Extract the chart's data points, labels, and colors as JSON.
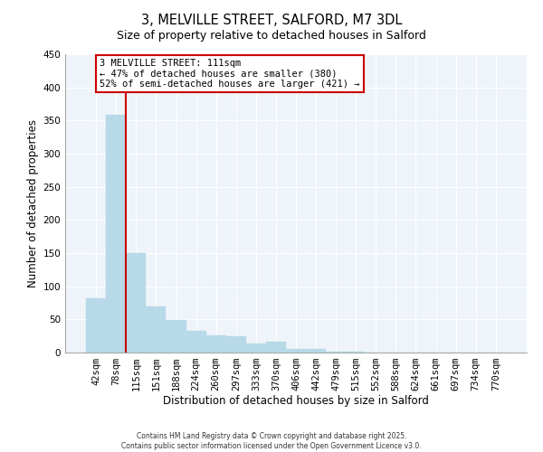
{
  "title": "3, MELVILLE STREET, SALFORD, M7 3DL",
  "subtitle": "Size of property relative to detached houses in Salford",
  "xlabel": "Distribution of detached houses by size in Salford",
  "ylabel": "Number of detached properties",
  "categories": [
    "42sqm",
    "78sqm",
    "115sqm",
    "151sqm",
    "188sqm",
    "224sqm",
    "260sqm",
    "297sqm",
    "333sqm",
    "370sqm",
    "406sqm",
    "442sqm",
    "479sqm",
    "515sqm",
    "552sqm",
    "588sqm",
    "624sqm",
    "661sqm",
    "697sqm",
    "734sqm",
    "770sqm"
  ],
  "values": [
    82,
    358,
    150,
    70,
    49,
    33,
    26,
    25,
    14,
    17,
    5,
    6,
    2,
    1,
    0,
    0,
    0,
    0,
    0,
    0,
    0
  ],
  "bar_color": "#b8d9e8",
  "bar_edge_color": "#b8d9e8",
  "highlight_line_color": "#cc0000",
  "ylim": [
    0,
    450
  ],
  "yticks": [
    0,
    50,
    100,
    150,
    200,
    250,
    300,
    350,
    400,
    450
  ],
  "annotation_line1": "3 MELVILLE STREET: 111sqm",
  "annotation_line2": "← 47% of detached houses are smaller (380)",
  "annotation_line3": "52% of semi-detached houses are larger (421) →",
  "footer_line1": "Contains HM Land Registry data © Crown copyright and database right 2025.",
  "footer_line2": "Contains public sector information licensed under the Open Government Licence v3.0.",
  "background_color": "#eef4fa",
  "grid_color": "#ffffff",
  "fig_bg_color": "#ffffff",
  "title_fontsize": 10.5,
  "subtitle_fontsize": 9,
  "axis_label_fontsize": 8.5,
  "tick_fontsize": 7.5,
  "annot_fontsize": 7.5,
  "footer_fontsize": 5.5
}
